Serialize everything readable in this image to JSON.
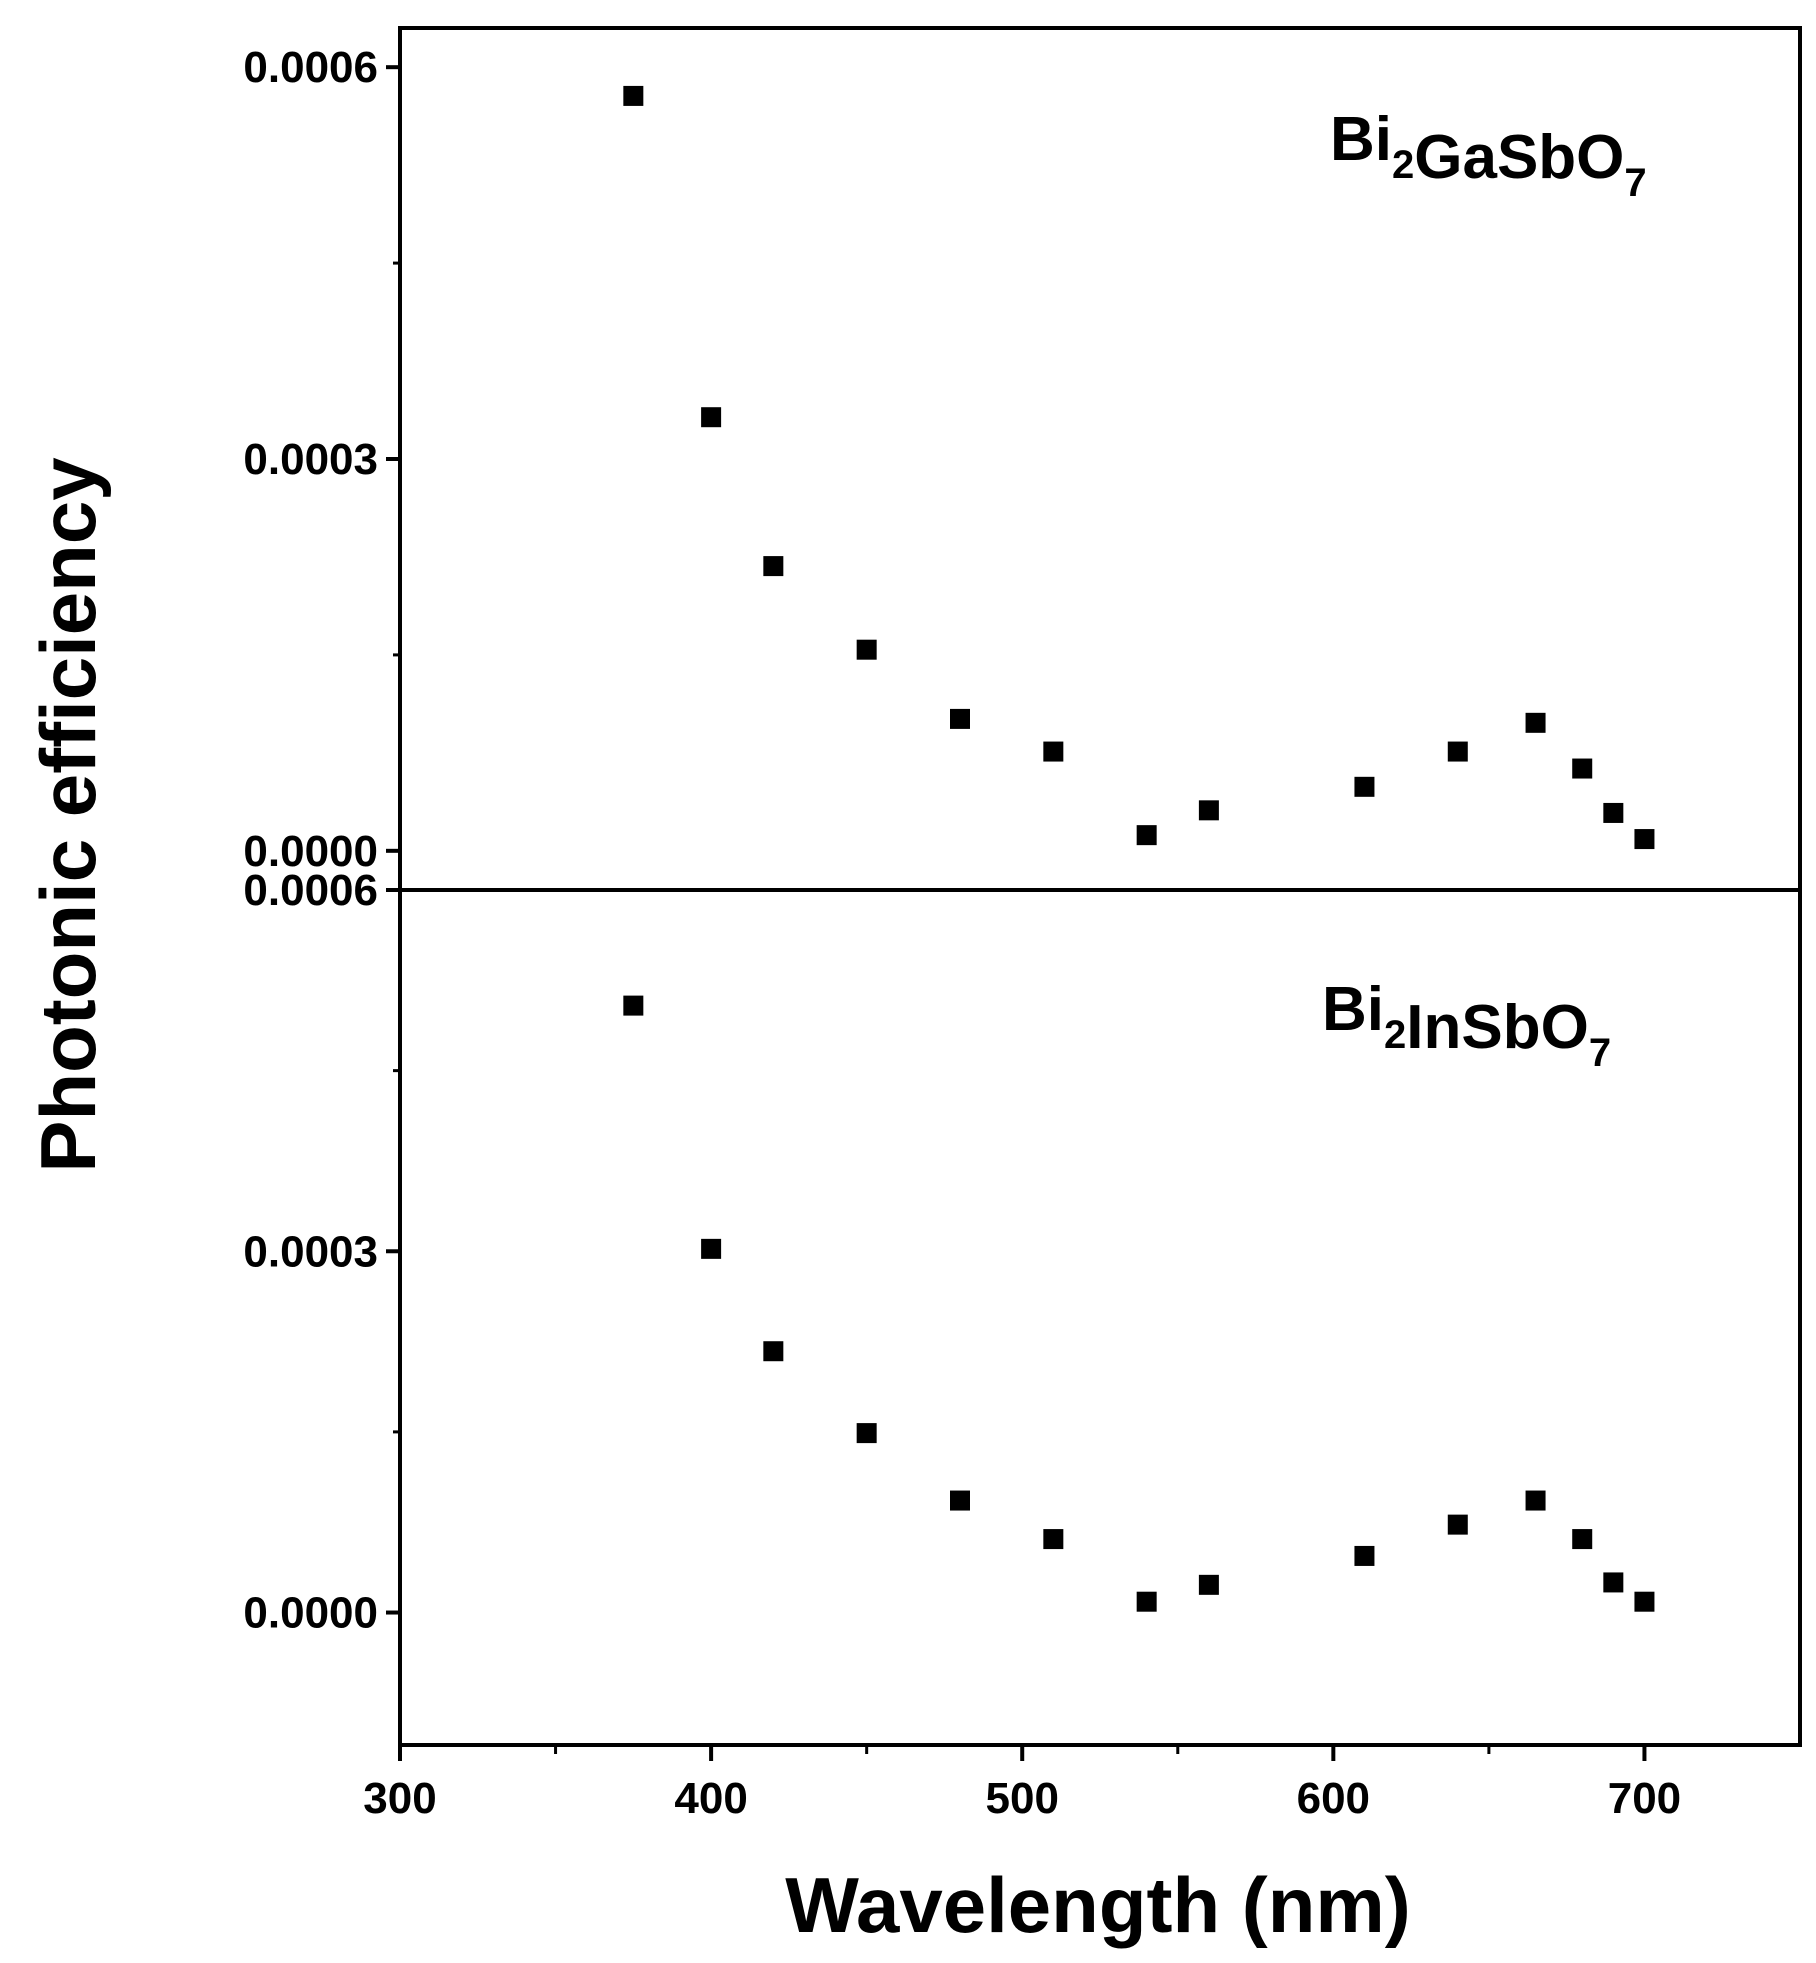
{
  "chart_data": [
    {
      "type": "scatter",
      "panel_label": {
        "parts": [
          [
            "Bi",
            ""
          ],
          [
            "2",
            "sub"
          ],
          [
            "GaSbO",
            ""
          ],
          [
            "7",
            "sub"
          ]
        ]
      },
      "ylabel": "Photonic efficiency",
      "xlim": [
        300,
        750
      ],
      "ylim": [
        -3e-05,
        0.00063
      ],
      "y_ticks": [
        0.0,
        0.0003,
        0.0006
      ],
      "y_tick_labels": [
        "0.0000",
        "0.0003",
        "0.0006"
      ],
      "marker": "square",
      "series": [
        {
          "x": [
            375,
            400,
            420,
            450,
            480,
            510,
            540,
            560,
            610,
            640,
            665,
            680,
            690,
            700
          ],
          "y": [
            0.000578,
            0.000332,
            0.000218,
            0.000154,
            0.000101,
            7.6e-05,
            1.2e-05,
            3.1e-05,
            4.9e-05,
            7.6e-05,
            9.8e-05,
            6.3e-05,
            2.9e-05,
            9e-06
          ]
        }
      ]
    },
    {
      "type": "scatter",
      "panel_label": {
        "parts": [
          [
            "Bi",
            ""
          ],
          [
            "2",
            "sub"
          ],
          [
            "InSbO",
            ""
          ],
          [
            "7",
            "sub"
          ]
        ]
      },
      "xlabel": "Wavelength (nm)",
      "xlim": [
        300,
        750
      ],
      "ylim": [
        -0.00011,
        0.0006
      ],
      "x_ticks": [
        300,
        400,
        500,
        600,
        700
      ],
      "x_tick_labels": [
        "300",
        "400",
        "500",
        "600",
        "700"
      ],
      "y_ticks": [
        0.0,
        0.0003,
        0.0006
      ],
      "y_tick_labels": [
        "0.0000",
        "0.0003",
        "0.0006"
      ],
      "marker": "square",
      "series": [
        {
          "x": [
            375,
            400,
            420,
            450,
            480,
            510,
            540,
            560,
            610,
            640,
            665,
            680,
            690,
            700
          ],
          "y": [
            0.000504,
            0.000302,
            0.000217,
            0.000149,
            9.3e-05,
            6.1e-05,
            9e-06,
            2.3e-05,
            4.7e-05,
            7.3e-05,
            9.3e-05,
            6.1e-05,
            2.5e-05,
            9e-06
          ]
        }
      ]
    }
  ]
}
